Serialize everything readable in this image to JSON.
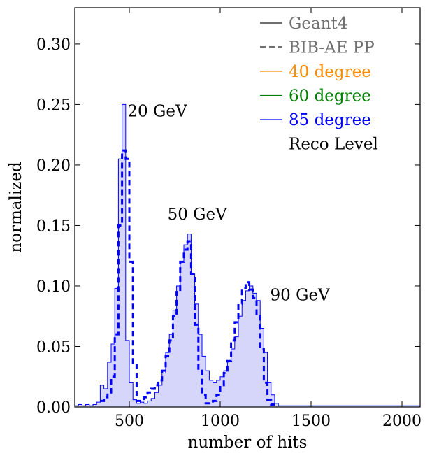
{
  "chart_data": {
    "type": "step-histogram",
    "xlabel": "number of hits",
    "ylabel": "normalized",
    "xlim": [
      200,
      2100
    ],
    "ylim": [
      0,
      0.33
    ],
    "xticks": [
      500,
      1000,
      1500,
      2000
    ],
    "yticks": [
      0.0,
      0.05,
      0.1,
      0.15,
      0.2,
      0.25,
      0.3
    ],
    "ytick_labels": [
      "0.00",
      "0.05",
      "0.10",
      "0.15",
      "0.20",
      "0.25",
      "0.30"
    ],
    "bin_width": 20,
    "legend": [
      {
        "label": "Geant4",
        "style": "solid",
        "color": "#707070"
      },
      {
        "label": "BIB-AE PP",
        "style": "dashed",
        "color": "#707070"
      },
      {
        "label": "40 degree",
        "style": "solid",
        "color": "#ff8c00"
      },
      {
        "label": "60 degree",
        "style": "solid",
        "color": "#008000"
      },
      {
        "label": "85 degree",
        "style": "solid",
        "color": "#0000ff"
      },
      {
        "label": "Reco Level",
        "style": "none",
        "color": "#000000"
      }
    ],
    "legend_position": "top-right",
    "annotations": [
      {
        "text": "20 GeV",
        "x": 490,
        "y": 0.24
      },
      {
        "text": "50 GeV",
        "x": 710,
        "y": 0.155
      },
      {
        "text": "90 GeV",
        "x": 1275,
        "y": 0.088
      }
    ],
    "series": [
      {
        "name": "Geant4",
        "style": "filled-step",
        "color": "#0000ff",
        "fill": "#d6d6fa",
        "points": [
          [
            200,
            0.001
          ],
          [
            220,
            0.002
          ],
          [
            240,
            0.001
          ],
          [
            260,
            0.002
          ],
          [
            280,
            0.001
          ],
          [
            300,
            0.002
          ],
          [
            320,
            0.004
          ],
          [
            340,
            0.018
          ],
          [
            360,
            0.015
          ],
          [
            380,
            0.037
          ],
          [
            400,
            0.052
          ],
          [
            420,
            0.098
          ],
          [
            440,
            0.205
          ],
          [
            460,
            0.25
          ],
          [
            480,
            0.055
          ],
          [
            500,
            0.02
          ],
          [
            520,
            0.006
          ],
          [
            540,
            0.003
          ],
          [
            560,
            0.004
          ],
          [
            580,
            0.003
          ],
          [
            600,
            0.005
          ],
          [
            620,
            0.007
          ],
          [
            640,
            0.012
          ],
          [
            660,
            0.018
          ],
          [
            680,
            0.028
          ],
          [
            700,
            0.045
          ],
          [
            720,
            0.06
          ],
          [
            740,
            0.08
          ],
          [
            760,
            0.1
          ],
          [
            780,
            0.12
          ],
          [
            800,
            0.134
          ],
          [
            820,
            0.143
          ],
          [
            840,
            0.11
          ],
          [
            860,
            0.085
          ],
          [
            880,
            0.06
          ],
          [
            900,
            0.042
          ],
          [
            920,
            0.03
          ],
          [
            940,
            0.022
          ],
          [
            960,
            0.02
          ],
          [
            980,
            0.022
          ],
          [
            1000,
            0.025
          ],
          [
            1020,
            0.03
          ],
          [
            1040,
            0.038
          ],
          [
            1060,
            0.048
          ],
          [
            1080,
            0.058
          ],
          [
            1100,
            0.075
          ],
          [
            1120,
            0.088
          ],
          [
            1140,
            0.096
          ],
          [
            1160,
            0.1
          ],
          [
            1180,
            0.094
          ],
          [
            1200,
            0.088
          ],
          [
            1220,
            0.065
          ],
          [
            1240,
            0.045
          ],
          [
            1260,
            0.02
          ],
          [
            1280,
            0.01
          ],
          [
            1300,
            0.003
          ],
          [
            1320,
            0.001
          ],
          [
            1340,
            0.001
          ],
          [
            1360,
            0.001
          ],
          [
            1380,
            0.001
          ],
          [
            1400,
            0.001
          ],
          [
            2100,
            0.001
          ]
        ]
      },
      {
        "name": "BIB-AE PP",
        "style": "dashed-step",
        "color": "#0000ff",
        "points": [
          [
            340,
            0.005
          ],
          [
            360,
            0.008
          ],
          [
            380,
            0.012
          ],
          [
            400,
            0.025
          ],
          [
            420,
            0.06
          ],
          [
            440,
            0.15
          ],
          [
            460,
            0.212
          ],
          [
            480,
            0.205
          ],
          [
            500,
            0.12
          ],
          [
            520,
            0.035
          ],
          [
            540,
            0.005
          ],
          [
            580,
            0.008
          ],
          [
            600,
            0.012
          ],
          [
            620,
            0.015
          ],
          [
            640,
            0.018
          ],
          [
            660,
            0.022
          ],
          [
            680,
            0.03
          ],
          [
            700,
            0.042
          ],
          [
            720,
            0.055
          ],
          [
            740,
            0.075
          ],
          [
            760,
            0.095
          ],
          [
            780,
            0.12
          ],
          [
            800,
            0.13
          ],
          [
            820,
            0.137
          ],
          [
            840,
            0.11
          ],
          [
            860,
            0.068
          ],
          [
            880,
            0.03
          ],
          [
            900,
            0.01
          ],
          [
            920,
            0.003
          ],
          [
            940,
            0.003
          ],
          [
            960,
            0.005
          ],
          [
            980,
            0.01
          ],
          [
            1000,
            0.018
          ],
          [
            1020,
            0.028
          ],
          [
            1040,
            0.038
          ],
          [
            1060,
            0.055
          ],
          [
            1080,
            0.07
          ],
          [
            1100,
            0.085
          ],
          [
            1120,
            0.098
          ],
          [
            1140,
            0.103
          ],
          [
            1160,
            0.097
          ],
          [
            1180,
            0.09
          ],
          [
            1200,
            0.075
          ],
          [
            1220,
            0.048
          ],
          [
            1240,
            0.02
          ],
          [
            1260,
            0.006
          ],
          [
            1280,
            0.002
          ]
        ]
      }
    ]
  }
}
